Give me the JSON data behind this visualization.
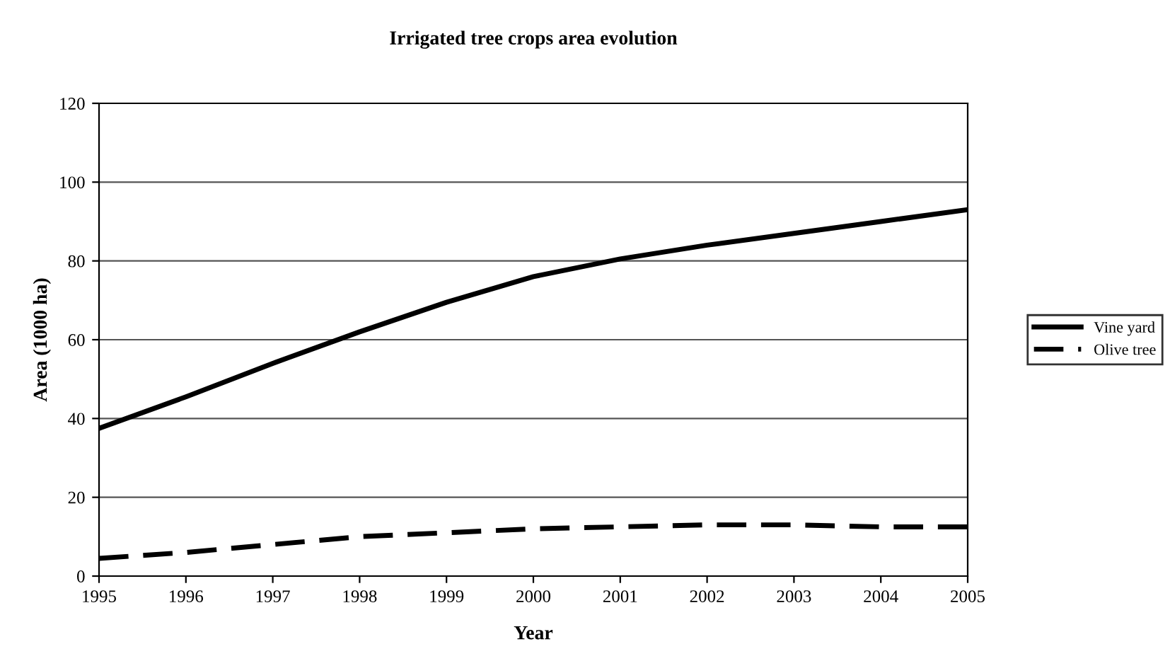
{
  "chart_data": {
    "type": "line",
    "title": "Irrigated tree crops area evolution",
    "xlabel": "Year",
    "ylabel": "Area (1000 ha)",
    "x": [
      1995,
      1996,
      1997,
      1998,
      1999,
      2000,
      2001,
      2002,
      2003,
      2004,
      2005
    ],
    "series": [
      {
        "name": "Vine yard",
        "color": "#000000",
        "line_style": "solid",
        "values": [
          37.5,
          45.5,
          54,
          62,
          69.5,
          76,
          80.5,
          84,
          87,
          90,
          93
        ]
      },
      {
        "name": "Olive tree",
        "color": "#000000",
        "line_style": "dashed",
        "values": [
          4.5,
          6,
          8,
          10,
          11,
          12,
          12.5,
          13,
          13,
          12.5,
          12.5
        ]
      }
    ],
    "xlim": [
      1995,
      2005
    ],
    "xticks": [
      1995,
      1996,
      1997,
      1998,
      1999,
      2000,
      2001,
      2002,
      2003,
      2004,
      2005
    ],
    "ylim": [
      0,
      120
    ],
    "yticks": [
      0,
      20,
      40,
      60,
      80,
      100,
      120
    ],
    "grid": "y",
    "legend": "right",
    "marker": "none"
  }
}
